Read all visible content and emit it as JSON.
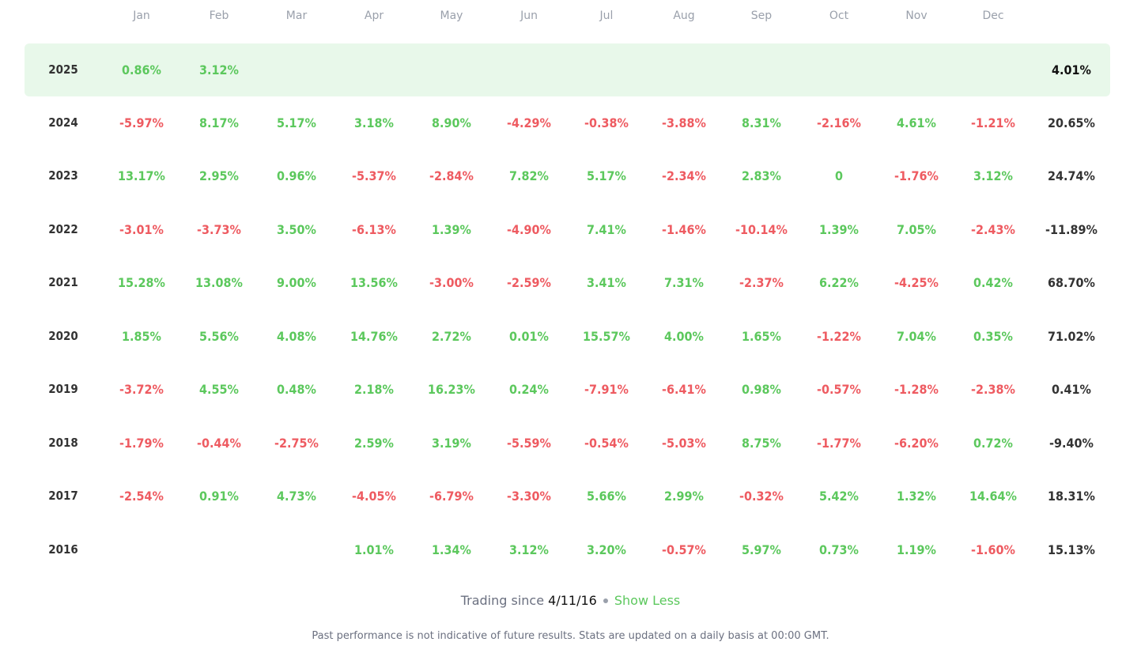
{
  "months": [
    "Jan",
    "Feb",
    "Mar",
    "Apr",
    "May",
    "Jun",
    "Jul",
    "Aug",
    "Sep",
    "Oct",
    "Nov",
    "Dec"
  ],
  "rows": [
    {
      "year": "2025",
      "values": [
        "0.86%",
        "3.12%",
        "",
        "",
        "",
        "",
        "",
        "",
        "",
        "",
        "",
        ""
      ],
      "total": "4.01%",
      "current": true
    },
    {
      "year": "2024",
      "values": [
        "-5.97%",
        "8.17%",
        "5.17%",
        "3.18%",
        "8.90%",
        "-4.29%",
        "-0.38%",
        "-3.88%",
        "8.31%",
        "-2.16%",
        "4.61%",
        "-1.21%"
      ],
      "total": "20.65%"
    },
    {
      "year": "2023",
      "values": [
        "13.17%",
        "2.95%",
        "0.96%",
        "-5.37%",
        "-2.84%",
        "7.82%",
        "5.17%",
        "-2.34%",
        "2.83%",
        "0",
        "-1.76%",
        "3.12%"
      ],
      "total": "24.74%"
    },
    {
      "year": "2022",
      "values": [
        "-3.01%",
        "-3.73%",
        "3.50%",
        "-6.13%",
        "1.39%",
        "-4.90%",
        "7.41%",
        "-1.46%",
        "-10.14%",
        "1.39%",
        "7.05%",
        "-2.43%"
      ],
      "total": "-11.89%"
    },
    {
      "year": "2021",
      "values": [
        "15.28%",
        "13.08%",
        "9.00%",
        "13.56%",
        "-3.00%",
        "-2.59%",
        "3.41%",
        "7.31%",
        "-2.37%",
        "6.22%",
        "-4.25%",
        "0.42%"
      ],
      "total": "68.70%"
    },
    {
      "year": "2020",
      "values": [
        "1.85%",
        "5.56%",
        "4.08%",
        "14.76%",
        "2.72%",
        "0.01%",
        "15.57%",
        "4.00%",
        "1.65%",
        "-1.22%",
        "7.04%",
        "0.35%"
      ],
      "total": "71.02%"
    },
    {
      "year": "2019",
      "values": [
        "-3.72%",
        "4.55%",
        "0.48%",
        "2.18%",
        "16.23%",
        "0.24%",
        "-7.91%",
        "-6.41%",
        "0.98%",
        "-0.57%",
        "-1.28%",
        "-2.38%"
      ],
      "total": "0.41%"
    },
    {
      "year": "2018",
      "values": [
        "-1.79%",
        "-0.44%",
        "-2.75%",
        "2.59%",
        "3.19%",
        "-5.59%",
        "-0.54%",
        "-5.03%",
        "8.75%",
        "-1.77%",
        "-6.20%",
        "0.72%"
      ],
      "total": "-9.40%"
    },
    {
      "year": "2017",
      "values": [
        "-2.54%",
        "0.91%",
        "4.73%",
        "-4.05%",
        "-6.79%",
        "-3.30%",
        "5.66%",
        "2.99%",
        "-0.32%",
        "5.42%",
        "1.32%",
        "14.64%"
      ],
      "total": "18.31%"
    },
    {
      "year": "2016",
      "values": [
        "",
        "",
        "",
        "1.01%",
        "1.34%",
        "3.12%",
        "3.20%",
        "-0.57%",
        "5.97%",
        "0.73%",
        "1.19%",
        "-1.60%"
      ],
      "total": "15.13%"
    }
  ],
  "footer": {
    "trading_since_label": "Trading since",
    "trading_since_date": "4/11/16",
    "toggle_label": "Show Less",
    "disclaimer": "Past performance is not indicative of future results. Stats are updated on a daily basis at 00:00 GMT."
  },
  "colors": {
    "positive": "#5cc85d",
    "negative": "#ee5b61",
    "current_row_bg": "#e8f8ea"
  }
}
